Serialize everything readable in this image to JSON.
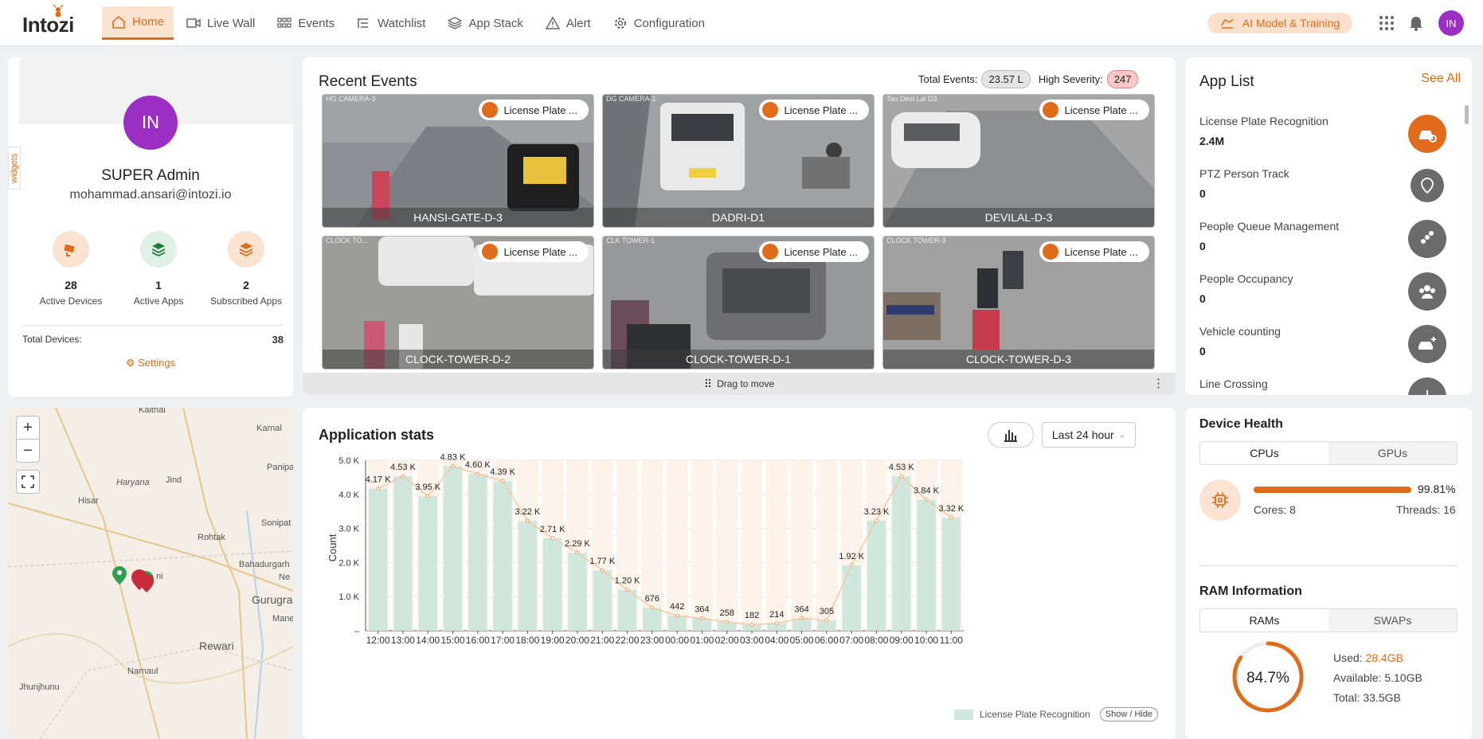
{
  "brand": {
    "logo_text": "Intozi"
  },
  "nav": [
    {
      "label": "Home",
      "icon": "home-icon",
      "active": true
    },
    {
      "label": "Live Wall",
      "icon": "video-icon"
    },
    {
      "label": "Events",
      "icon": "events-grid-icon"
    },
    {
      "label": "Watchlist",
      "icon": "list-icon"
    },
    {
      "label": "App Stack",
      "icon": "layers-icon"
    },
    {
      "label": "Alert",
      "icon": "warning-icon"
    },
    {
      "label": "Configuration",
      "icon": "gear-icon"
    }
  ],
  "topbar": {
    "ai_button": "AI Model & Training",
    "user_initials": "IN"
  },
  "profile": {
    "widgets_tab": "widgets",
    "initials": "IN",
    "name": "SUPER Admin",
    "email": "mohammad.ansari@intozi.io",
    "stats": [
      {
        "value": "28",
        "label": "Active Devices",
        "icon": "camera-icon"
      },
      {
        "value": "1",
        "label": "Active Apps",
        "icon": "layers-icon"
      },
      {
        "value": "2",
        "label": "Subscribed Apps",
        "icon": "layers-icon"
      }
    ],
    "total_label": "Total Devices:",
    "total_value": "38",
    "settings_label": "Settings"
  },
  "map": {
    "zoom_in": "+",
    "zoom_out": "−",
    "places": [
      "Kaithal",
      "Karnal",
      "Haryana",
      "Jind",
      "Panipat",
      "Hisar",
      "Rohtak",
      "Sonipat",
      "Bahadurgarh",
      "Ne",
      "Gurugra",
      "Manesar",
      "Rewari",
      "Jhunjhunu",
      "Narnaul",
      "ni"
    ]
  },
  "events": {
    "title": "Recent Events",
    "total_label": "Total Events:",
    "total_value": "23.57 L",
    "severity_label": "High Severity:",
    "severity_value": "247",
    "drag_label": "Drag to move",
    "items": [
      {
        "camera": "HANSI-GATE-D-3",
        "badge": "License Plate ...",
        "corner": "HG CAMERA-3"
      },
      {
        "camera": "DADRI-D1",
        "badge": "License Plate ...",
        "corner": "DG CAMERA-1"
      },
      {
        "camera": "DEVILAL-D-3",
        "badge": "License Plate ...",
        "corner": "Tau Devi Lal D3"
      },
      {
        "camera": "CLOCK-TOWER-D-2",
        "badge": "License Plate ...",
        "corner": "CLOCK TO..."
      },
      {
        "camera": "CLOCK-TOWER-D-1",
        "badge": "License Plate ...",
        "corner": "CLK TOWER-1"
      },
      {
        "camera": "CLOCK-TOWER-D-3",
        "badge": "License Plate ...",
        "corner": "CLOCK TOWER-3"
      }
    ]
  },
  "applist": {
    "title": "App List",
    "see_all": "See All",
    "apps": [
      {
        "name": "License Plate Recognition",
        "value": "2.4M",
        "icon": "car-search-icon",
        "active": true
      },
      {
        "name": "PTZ Person Track",
        "value": "0",
        "icon": "location-pin-icon"
      },
      {
        "name": "People Queue Management",
        "value": "0",
        "icon": "people-queue-icon"
      },
      {
        "name": "People Occupancy",
        "value": "0",
        "icon": "people-group-icon"
      },
      {
        "name": "Vehicle counting",
        "value": "0",
        "icon": "vehicle-count-icon"
      },
      {
        "name": "Line Crossing",
        "value": "",
        "icon": "line-cross-icon"
      }
    ]
  },
  "stats": {
    "title": "Application stats",
    "range": "Last 24 hour",
    "show_hide": "Show / Hide"
  },
  "chart_data": {
    "type": "bar",
    "title": "",
    "xlabel": "",
    "ylabel": "Count",
    "ylim": [
      0,
      5000
    ],
    "yticks": [
      "–",
      "1.0 K",
      "2.0 K",
      "3.0 K",
      "4.0 K",
      "5.0 K"
    ],
    "categories": [
      "12:00",
      "13:00",
      "14:00",
      "15:00",
      "16:00",
      "17:00",
      "18:00",
      "19:00",
      "20:00",
      "21:00",
      "22:00",
      "23:00",
      "00:00",
      "01:00",
      "02:00",
      "03:00",
      "04:00",
      "05:00",
      "06:00",
      "07:00",
      "08:00",
      "09:00",
      "10:00",
      "11:00"
    ],
    "series": [
      {
        "name": "License Plate Recognition",
        "values": [
          4170,
          4530,
          3950,
          4830,
          4600,
          4390,
          3220,
          2710,
          2290,
          1770,
          1200,
          676,
          442,
          364,
          258,
          182,
          214,
          364,
          305,
          1920,
          3230,
          4530,
          3840,
          3320
        ],
        "labels": [
          "4.17 K",
          "4.53 K",
          "3.95 K",
          "4.83 K",
          "4.60 K",
          "4.39 K",
          "3.22 K",
          "2.71 K",
          "2.29 K",
          "1.77 K",
          "1.20 K",
          "676",
          "442",
          "364",
          "258",
          "182",
          "214",
          "364",
          "305",
          "1.92 K",
          "3.23 K",
          "4.53 K",
          "3.84 K",
          "3.32 K"
        ]
      }
    ],
    "colors": {
      "bar": "#cfe7dc",
      "band": "#fdf3ea",
      "line": "#f4c9a3"
    },
    "legend_position": "bottom-right"
  },
  "health": {
    "title": "Device Health",
    "tabs": [
      "CPUs",
      "GPUs"
    ],
    "cpu_percent_label": "99.81%",
    "cpu_percent": 99.81,
    "cores_label": "Cores:",
    "cores": "8",
    "threads_label": "Threads:",
    "threads": "16",
    "ram_title": "RAM Information",
    "ram_tabs": [
      "RAMs",
      "SWAPs"
    ],
    "ram_percent_label": "84.7%",
    "ram_percent": 84.7,
    "used_label": "Used:",
    "used": "28.4GB",
    "available_label": "Available:",
    "available": "5.10GB",
    "total_label": "Total:",
    "total": "33.5GB"
  },
  "accent": "#e06c1b"
}
